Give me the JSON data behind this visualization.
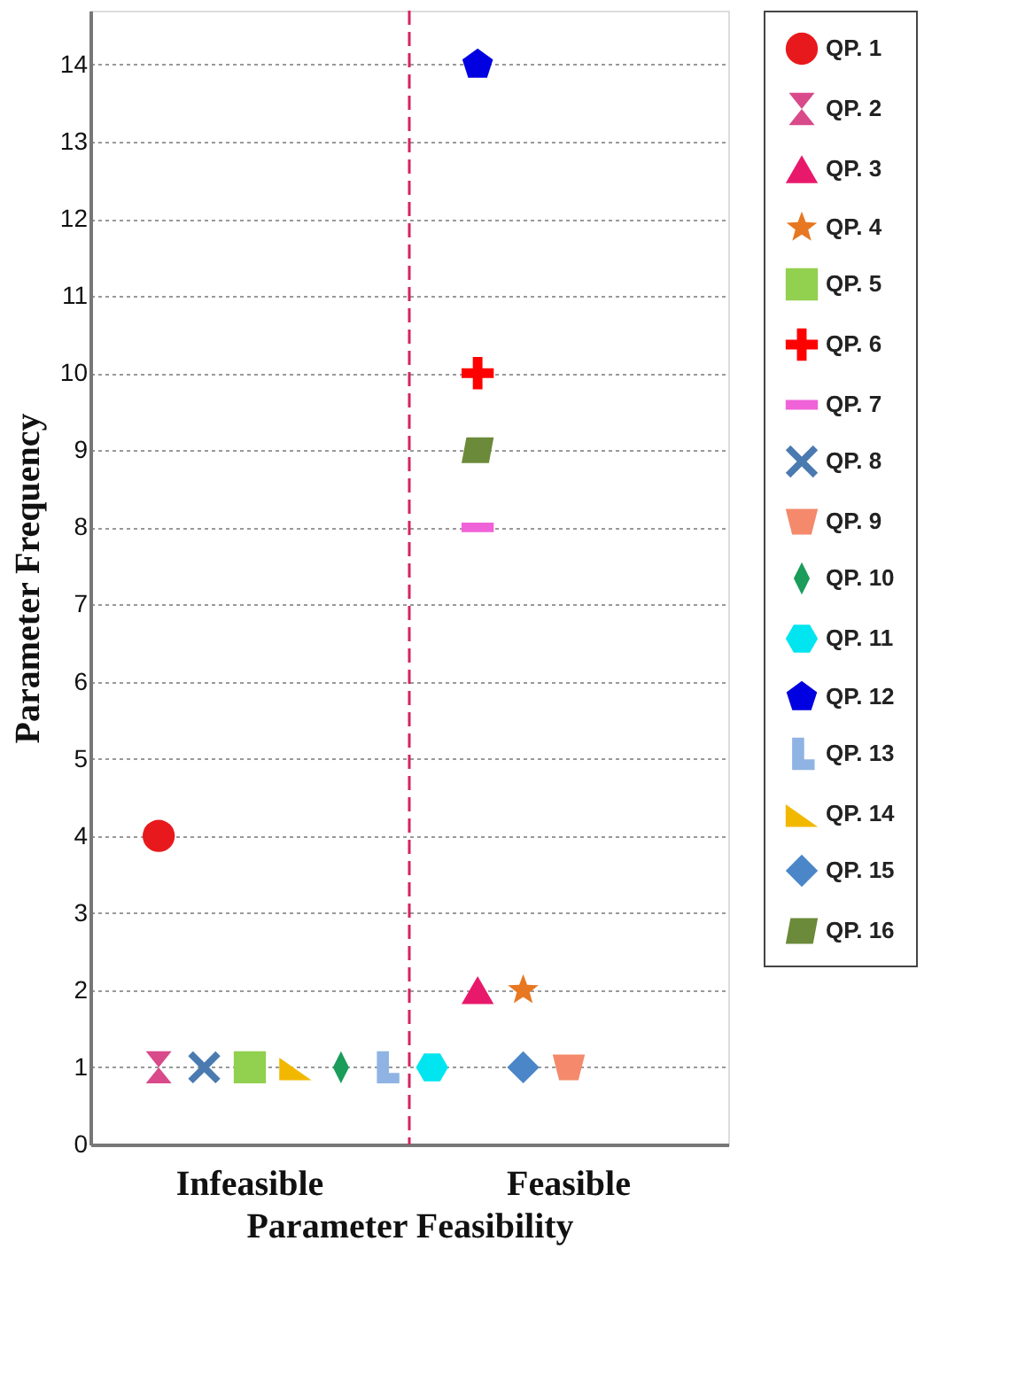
{
  "chart_data": {
    "type": "scatter",
    "xlabel": "Parameter Feasibility",
    "ylabel": "Parameter Frequency",
    "categories": [
      null,
      null,
      null,
      "Infeasible",
      null,
      null,
      null,
      null,
      null,
      null,
      "Feasible",
      null,
      null,
      null
    ],
    "ylim": [
      0,
      14.7
    ],
    "yticks": [
      0,
      1,
      2,
      3,
      4,
      5,
      6,
      7,
      8,
      9,
      10,
      11,
      12,
      13,
      14
    ],
    "grid": "y",
    "legend": "right",
    "series": [
      {
        "name": "QP. 1",
        "color": "#e8191c",
        "marker": "circle",
        "values": [
          null,
          4,
          null,
          null,
          null,
          null,
          null,
          null,
          null,
          null,
          null,
          null,
          null,
          null
        ]
      },
      {
        "name": "QP. 2",
        "color": "#d94a8a",
        "values": [
          null,
          1,
          null,
          null,
          null,
          null,
          null,
          null,
          null,
          null,
          null,
          null,
          null,
          null
        ]
      },
      {
        "name": "QP. 3",
        "color": "#e8196b",
        "marker": "triangle",
        "values": [
          null,
          null,
          null,
          null,
          null,
          null,
          null,
          null,
          2,
          null,
          null,
          null,
          null,
          null
        ]
      },
      {
        "name": "QP. 4",
        "color": "#e87722",
        "marker": "star",
        "values": [
          null,
          null,
          null,
          null,
          null,
          null,
          null,
          null,
          null,
          2,
          null,
          null,
          null,
          null
        ]
      },
      {
        "name": "QP. 5",
        "color": "#92d050",
        "marker": "square",
        "values": [
          null,
          null,
          null,
          1,
          null,
          null,
          null,
          null,
          null,
          null,
          null,
          null,
          null,
          null
        ]
      },
      {
        "name": "QP. 6",
        "color": "#ff0000",
        "marker": "cross",
        "values": [
          null,
          null,
          null,
          null,
          null,
          null,
          null,
          null,
          10,
          null,
          null,
          null,
          null,
          null
        ]
      },
      {
        "name": "QP. 7",
        "color": "#f062d8",
        "values": [
          null,
          null,
          null,
          null,
          null,
          null,
          null,
          null,
          8,
          null,
          null,
          null,
          null,
          null
        ]
      },
      {
        "name": "QP. 8",
        "color": "#4a7ab0",
        "values": [
          null,
          null,
          1,
          null,
          null,
          null,
          null,
          null,
          null,
          null,
          null,
          null,
          null,
          null
        ]
      },
      {
        "name": "QP. 9",
        "color": "#f4896b",
        "values": [
          null,
          null,
          null,
          null,
          null,
          null,
          null,
          null,
          null,
          null,
          1,
          null,
          null,
          null
        ]
      },
      {
        "name": "QP. 10",
        "color": "#1a9c5a",
        "values": [
          null,
          null,
          null,
          null,
          null,
          1,
          null,
          null,
          null,
          null,
          null,
          null,
          null,
          null
        ]
      },
      {
        "name": "QP. 11",
        "color": "#00e5f0",
        "values": [
          null,
          null,
          null,
          null,
          null,
          null,
          null,
          1,
          null,
          null,
          null,
          null,
          null,
          null
        ]
      },
      {
        "name": "QP. 12",
        "color": "#0000e0",
        "values": [
          null,
          null,
          null,
          null,
          null,
          null,
          null,
          null,
          14,
          null,
          null,
          null,
          null,
          null
        ]
      },
      {
        "name": "QP. 13",
        "color": "#8fb4e3",
        "values": [
          null,
          null,
          null,
          null,
          null,
          null,
          1,
          null,
          null,
          null,
          null,
          null,
          null,
          null
        ]
      },
      {
        "name": "QP. 14",
        "color": "#f2b800",
        "values": [
          null,
          null,
          null,
          null,
          1,
          null,
          null,
          null,
          null,
          null,
          null,
          null,
          null,
          null
        ]
      },
      {
        "name": "QP. 15",
        "color": "#4a86c8",
        "marker": "diamond",
        "values": [
          null,
          null,
          null,
          null,
          null,
          null,
          null,
          null,
          null,
          1,
          null,
          null,
          null,
          null
        ]
      },
      {
        "name": "QP. 16",
        "color": "#6b8a3a",
        "values": [
          null,
          null,
          null,
          null,
          null,
          null,
          null,
          null,
          9,
          null,
          null,
          null,
          null,
          null
        ]
      }
    ]
  }
}
